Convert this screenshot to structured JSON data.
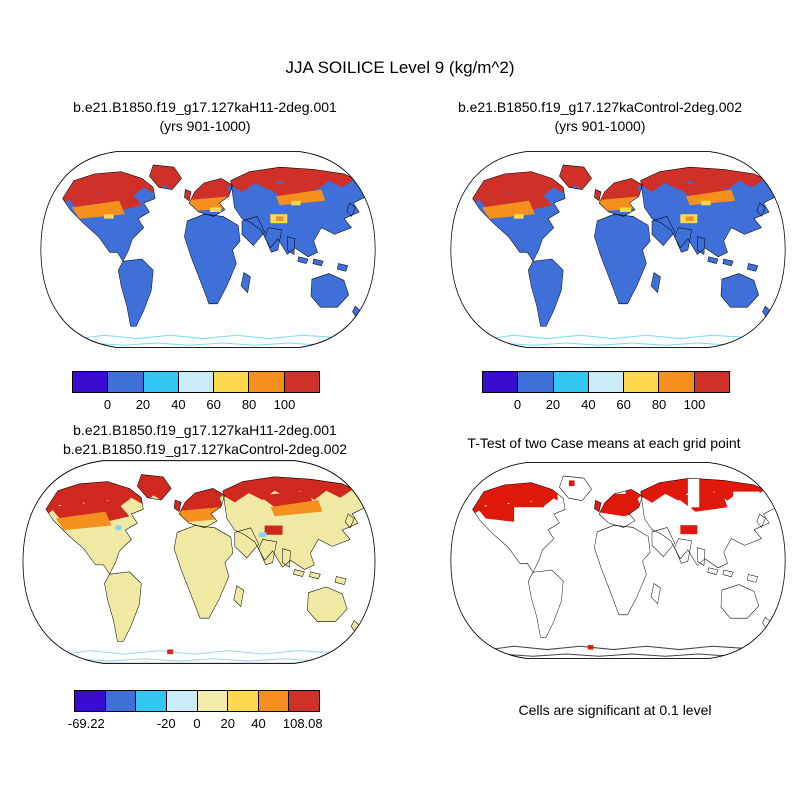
{
  "title": "JJA SOILICE Level 9 (kg/m^2)",
  "panels": {
    "top_left": {
      "title_lines": [
        "b.e21.B1850.f19_g17.127kaH11-2deg.001",
        "(yrs 901-1000)"
      ],
      "map_type": "values",
      "colorbar": "soilice"
    },
    "top_right": {
      "title_lines": [
        "b.e21.B1850.f19_g17.127kaControl-2deg.002",
        "(yrs 901-1000)"
      ],
      "map_type": "values",
      "colorbar": "soilice"
    },
    "bottom_left": {
      "title_lines": [
        "b.e21.B1850.f19_g17.127kaH11-2deg.001",
        "b.e21.B1850.f19_g17.127kaControl-2deg.002"
      ],
      "map_type": "diff",
      "colorbar": "diff"
    },
    "bottom_right": {
      "title_lines": [
        "T-Test of two Case means at each grid point"
      ],
      "map_type": "ttest",
      "caption": "Cells are significant at 0.1 level"
    }
  },
  "colorbars": {
    "soilice": {
      "segments": [
        "#3a0bd0",
        "#3f6fd8",
        "#33c6f0",
        "#c9ecf8",
        "#ffd84d",
        "#f5901e",
        "#cf3027"
      ],
      "ticks": [
        {
          "label": "0",
          "pos": 0.143
        },
        {
          "label": "20",
          "pos": 0.286
        },
        {
          "label": "40",
          "pos": 0.429
        },
        {
          "label": "60",
          "pos": 0.571
        },
        {
          "label": "80",
          "pos": 0.714
        },
        {
          "label": "100",
          "pos": 0.857
        }
      ]
    },
    "diff": {
      "segments": [
        "#3a0bd0",
        "#3f6fd8",
        "#33c6f0",
        "#c9ecf8",
        "#f2ecab",
        "#ffd84d",
        "#f5901e",
        "#cf3027"
      ],
      "ticks": [
        {
          "label": "-69.22",
          "pos": 0.05
        },
        {
          "label": "-20",
          "pos": 0.375
        },
        {
          "label": "0",
          "pos": 0.5
        },
        {
          "label": "20",
          "pos": 0.625
        },
        {
          "label": "40",
          "pos": 0.75
        },
        {
          "label": "108.08",
          "pos": 0.93
        }
      ]
    }
  },
  "map_colors": {
    "values": {
      "land": "#3f6fd8",
      "high": "#cf3027",
      "mid": "#f5901e",
      "accent": "#ffd84d",
      "antarctica_coast": "#7fd9f2",
      "ocean": "#ffffff",
      "outline": "#000000"
    },
    "diff": {
      "land": "#f0e9a4",
      "high": "#d0271f",
      "mid": "#f5901e",
      "accent": "#7fd9f2",
      "antarctica_coast": "#9fd4ee",
      "ocean": "#ffffff",
      "outline": "#000000"
    },
    "ttest": {
      "land": "#ffffff",
      "high": "#e0180c",
      "mid": "#e0180c",
      "accent": "#e0180c",
      "antarctica_coast": "#444444",
      "ocean": "#ffffff",
      "outline": "#000000"
    }
  },
  "chart_data": [
    {
      "type": "heatmap",
      "panel": "top_left",
      "title": "b.e21.B1850.f19_g17.127kaH11-2deg.001 (yrs 901-1000)",
      "variable": "JJA SOILICE Level 9 (kg/m^2)",
      "projection": "Robinson world map, ocean masked white",
      "colorbar_ticks": [
        0,
        20,
        40,
        60,
        80,
        100
      ],
      "colorbar_colors": [
        "#3a0bd0",
        "#3f6fd8",
        "#33c6f0",
        "#c9ecf8",
        "#ffd84d",
        "#f5901e",
        "#cf3027"
      ],
      "pattern": "Most land 0-20 kg/m^2 (blue); Arctic land of North America, Greenland and northern Eurasia above 80-100 (orange/red) with yellow-orange transition fringe; small high patch over the Tibetan Plateau; Antarctic coastline shows 20-60 (cyan)."
    },
    {
      "type": "heatmap",
      "panel": "top_right",
      "title": "b.e21.B1850.f19_g17.127kaControl-2deg.002 (yrs 901-1000)",
      "variable": "JJA SOILICE Level 9 (kg/m^2)",
      "projection": "Robinson world map, ocean masked white",
      "colorbar_ticks": [
        0,
        20,
        40,
        60,
        80,
        100
      ],
      "colorbar_colors": [
        "#3a0bd0",
        "#3f6fd8",
        "#33c6f0",
        "#c9ecf8",
        "#ffd84d",
        "#f5901e",
        "#cf3027"
      ],
      "pattern": "Very similar to case 1: low values (blue) over most land, high values (orange/red) across Arctic land and northern Eurasia, cyan Antarctic coastline."
    },
    {
      "type": "heatmap",
      "panel": "bottom_left",
      "title": "b.e21.B1850.f19_g17.127kaH11-2deg.001 minus b.e21.B1850.f19_g17.127kaControl-2deg.002",
      "variable": "JJA SOILICE difference (kg/m^2)",
      "projection": "Robinson world map, ocean masked white",
      "colorbar_ticks": [
        -69.22,
        -20,
        0,
        20,
        40,
        108.08
      ],
      "range": [
        -69.22,
        108.08
      ],
      "colorbar_colors": [
        "#3a0bd0",
        "#3f6fd8",
        "#33c6f0",
        "#c9ecf8",
        "#f2ecab",
        "#ffd84d",
        "#f5901e",
        "#cf3027"
      ],
      "pattern": "Near-zero difference (pale yellow) over most land; strong positive differences (above 40, orange/red) across northern North America, Scandinavia, northern Russia and the Tibetan Plateau; scattered small negative (light blue) cells near coasts and Antarctica."
    },
    {
      "type": "heatmap",
      "panel": "bottom_right",
      "title": "T-Test of two Case means at each grid point",
      "note": "Cells are significant at 0.1 level",
      "pattern": "Red cells mark statistically significant differences, concentrated over northern Canada/Alaska, Scandinavia, northern Russia/Siberia and the Tibetan Plateau; remaining land white (not significant); continents drawn as black outlines."
    }
  ]
}
